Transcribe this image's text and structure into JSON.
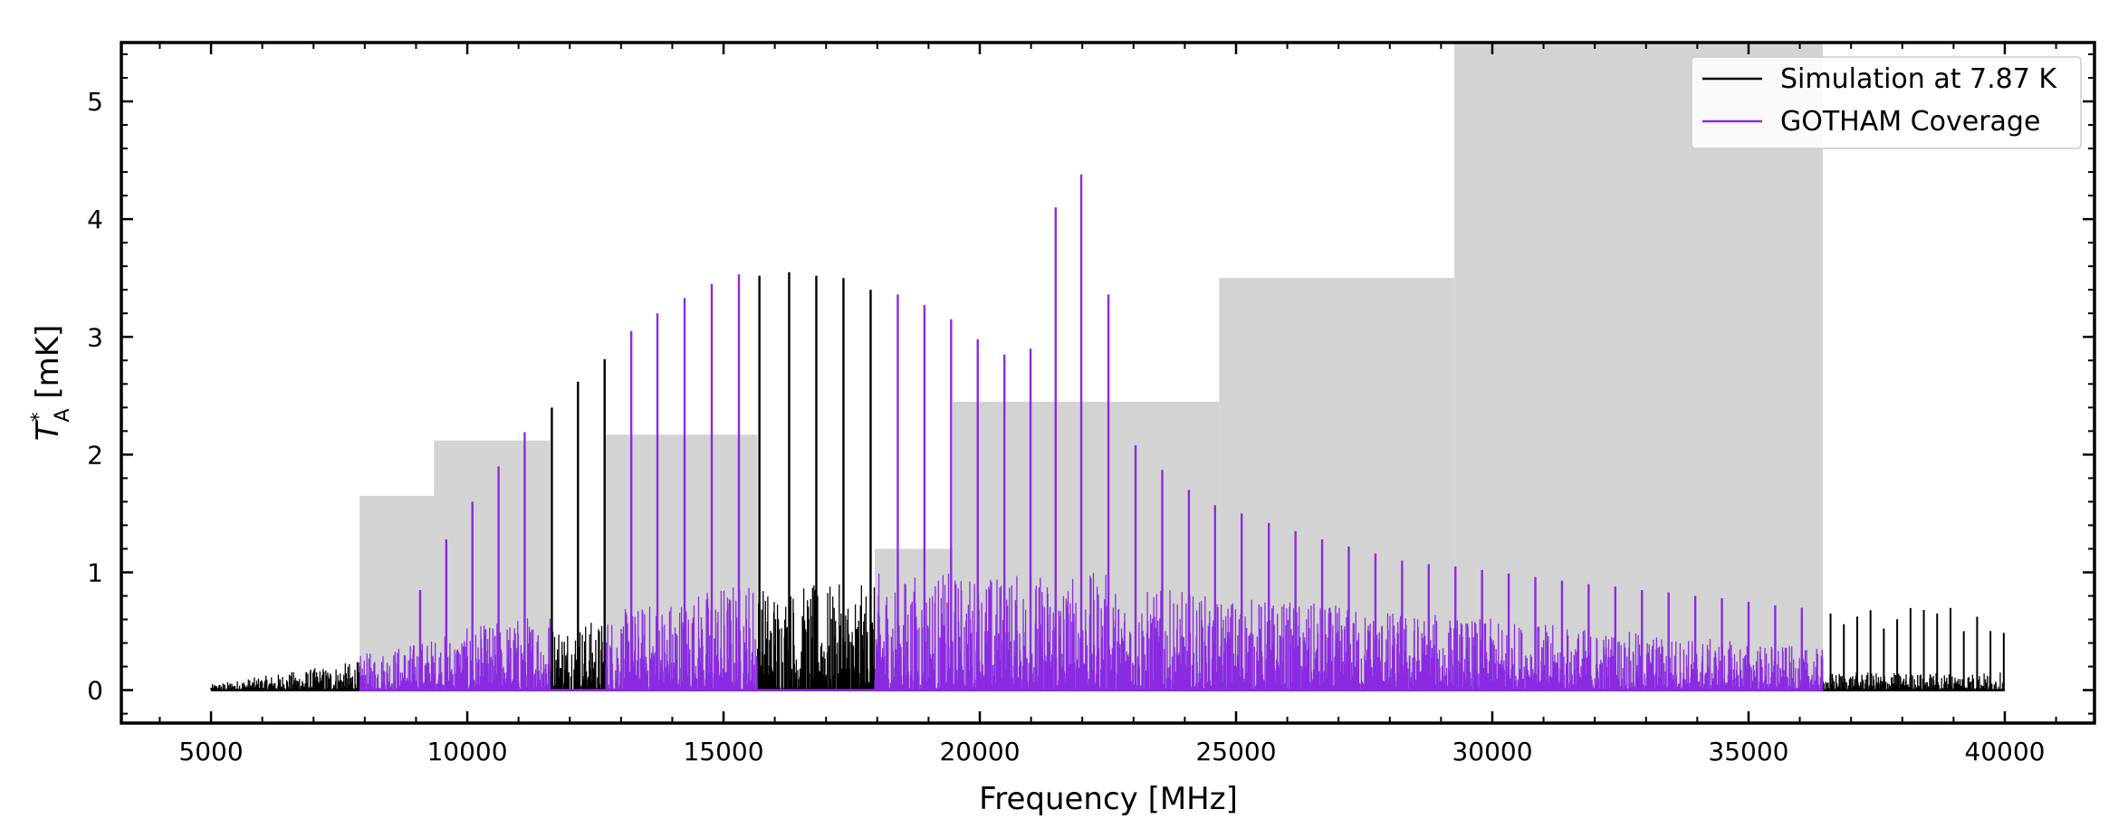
{
  "chart_data": {
    "type": "line",
    "title": "",
    "xlabel": "Frequency [MHz]",
    "ylabel_main": "T",
    "ylabel_sup": "*",
    "ylabel_sub": "A",
    "ylabel_unit": " [mK]",
    "xlim": [
      3250,
      41750
    ],
    "ylim": [
      -0.28,
      5.5
    ],
    "xticks": [
      5000,
      10000,
      15000,
      20000,
      25000,
      30000,
      35000,
      40000
    ],
    "xtick_labels": [
      "5000",
      "10000",
      "15000",
      "20000",
      "25000",
      "30000",
      "35000",
      "40000"
    ],
    "yticks": [
      0,
      1,
      2,
      3,
      4,
      5
    ],
    "ytick_labels": [
      "0",
      "1",
      "2",
      "3",
      "4",
      "5"
    ],
    "x_minor_step": 1000,
    "y_minor_step": 0.2,
    "grid": false,
    "legend_position": "top-right",
    "legend": [
      {
        "label": "Simulation at 7.87 K",
        "color": "#000000"
      },
      {
        "label": "GOTHAM Coverage",
        "color": "#8a2be2"
      }
    ],
    "coverage_bands": [
      {
        "x0": 7900,
        "x1": 9350,
        "y": 1.65
      },
      {
        "x0": 9350,
        "x1": 11620,
        "y": 2.12
      },
      {
        "x0": 12700,
        "x1": 15660,
        "y": 2.17
      },
      {
        "x0": 17950,
        "x1": 19470,
        "y": 1.2
      },
      {
        "x0": 19470,
        "x1": 24670,
        "y": 2.45
      },
      {
        "x0": 24670,
        "x1": 29260,
        "y": 3.5
      },
      {
        "x0": 29260,
        "x1": 36450,
        "y": 5.5
      }
    ],
    "series": [
      {
        "name": "Simulation at 7.87 K",
        "color": "#000000",
        "peaks": [
          {
            "x": 11650,
            "y": 2.4
          },
          {
            "x": 12160,
            "y": 2.62
          },
          {
            "x": 12680,
            "y": 2.81
          },
          {
            "x": 15700,
            "y": 3.52
          },
          {
            "x": 16280,
            "y": 3.55
          },
          {
            "x": 16810,
            "y": 3.52
          },
          {
            "x": 17340,
            "y": 3.5
          },
          {
            "x": 17870,
            "y": 3.4
          }
        ],
        "baseline_noise_max": 0.9
      },
      {
        "name": "GOTHAM Coverage",
        "color": "#8a2be2",
        "peaks": [
          {
            "x": 9080,
            "y": 0.85
          },
          {
            "x": 9590,
            "y": 1.28
          },
          {
            "x": 10100,
            "y": 1.6
          },
          {
            "x": 10610,
            "y": 1.9
          },
          {
            "x": 11120,
            "y": 2.19
          },
          {
            "x": 13200,
            "y": 3.05
          },
          {
            "x": 13710,
            "y": 3.2
          },
          {
            "x": 14240,
            "y": 3.33
          },
          {
            "x": 14770,
            "y": 3.45
          },
          {
            "x": 15300,
            "y": 3.53
          },
          {
            "x": 18400,
            "y": 3.36
          },
          {
            "x": 18920,
            "y": 3.27
          },
          {
            "x": 19440,
            "y": 3.15
          },
          {
            "x": 19960,
            "y": 2.98
          },
          {
            "x": 20480,
            "y": 2.85
          },
          {
            "x": 20990,
            "y": 2.9
          },
          {
            "x": 21480,
            "y": 4.1
          },
          {
            "x": 21980,
            "y": 4.38
          },
          {
            "x": 22510,
            "y": 3.36
          },
          {
            "x": 23040,
            "y": 2.08
          },
          {
            "x": 23560,
            "y": 1.87
          },
          {
            "x": 24080,
            "y": 1.7
          },
          {
            "x": 24590,
            "y": 1.57
          },
          {
            "x": 25110,
            "y": 1.5
          },
          {
            "x": 25640,
            "y": 1.42
          },
          {
            "x": 26160,
            "y": 1.35
          },
          {
            "x": 26680,
            "y": 1.28
          },
          {
            "x": 27200,
            "y": 1.22
          },
          {
            "x": 27720,
            "y": 1.16
          },
          {
            "x": 28240,
            "y": 1.1
          },
          {
            "x": 28760,
            "y": 1.07
          },
          {
            "x": 29280,
            "y": 1.05
          },
          {
            "x": 29800,
            "y": 1.02
          },
          {
            "x": 30320,
            "y": 0.99
          },
          {
            "x": 30840,
            "y": 0.96
          },
          {
            "x": 31360,
            "y": 0.93
          },
          {
            "x": 31880,
            "y": 0.9
          },
          {
            "x": 32400,
            "y": 0.88
          },
          {
            "x": 32920,
            "y": 0.85
          },
          {
            "x": 33440,
            "y": 0.83
          },
          {
            "x": 33960,
            "y": 0.8
          },
          {
            "x": 34480,
            "y": 0.78
          },
          {
            "x": 35000,
            "y": 0.75
          },
          {
            "x": 35520,
            "y": 0.72
          },
          {
            "x": 36040,
            "y": 0.7
          }
        ],
        "baseline_noise_max": 1.05
      }
    ]
  }
}
